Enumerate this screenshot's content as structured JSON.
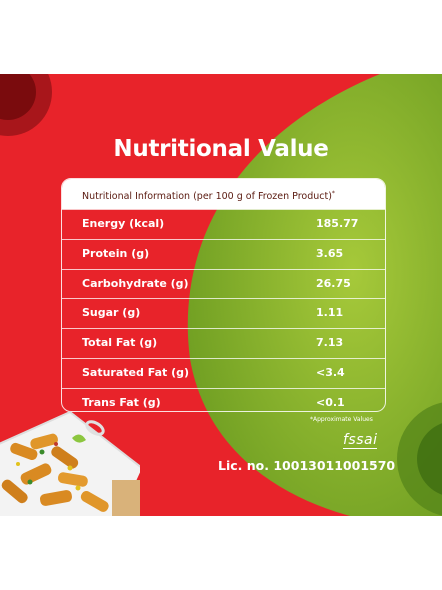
{
  "title": "Nutritional Value",
  "table": {
    "header": "Nutritional Information (per 100 g of Frozen Product)",
    "header_mark": "*",
    "rows": [
      {
        "label": "Energy (kcal)",
        "value": "185.77"
      },
      {
        "label": "Protein (g)",
        "value": "3.65"
      },
      {
        "label": "Carbohydrate (g)",
        "value": "26.75"
      },
      {
        "label": "Sugar (g)",
        "value": "1.11"
      },
      {
        "label": "Total Fat (g)",
        "value": "7.13"
      },
      {
        "label": "Saturated Fat (g)",
        "value": "<3.4"
      },
      {
        "label": "Trans Fat (g)",
        "value": "<0.1"
      }
    ]
  },
  "footnote": "*Approximate Values",
  "fssai_logo": "fssai",
  "license": "Lic. no. 10013011001570",
  "colors": {
    "red": "#e8232a",
    "green": "#7db02a",
    "dark_red": "#7a0b0d"
  }
}
